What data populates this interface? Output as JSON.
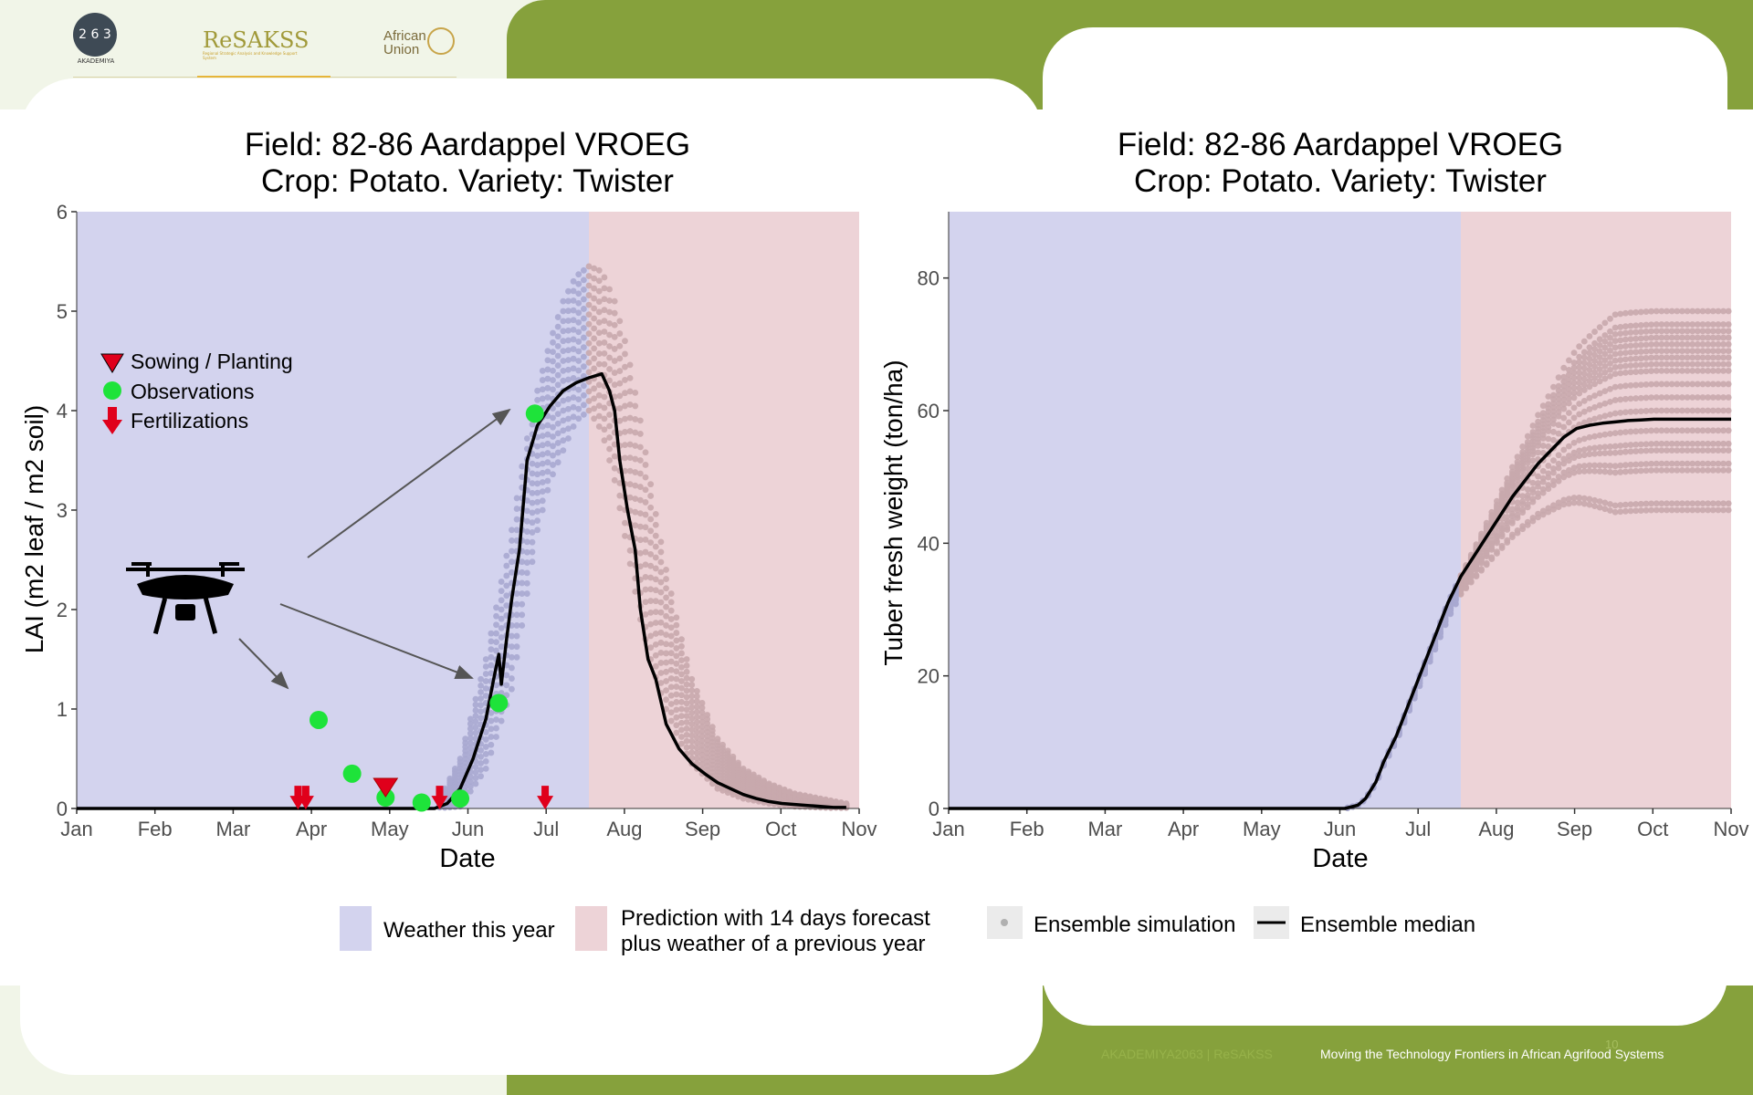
{
  "logos": {
    "akademiya_top": "6 3",
    "akademiya_bottom": "2",
    "akademiya_caption": "AKADEMIYA",
    "resakss": "ReSAKSS",
    "resakss_tagline": "Regional Strategic Analysis and Knowledge Support System",
    "african_union_line1": "African",
    "african_union_line2": "Union"
  },
  "footer": {
    "text": "Moving the Technology Frontiers in African Agrifood Systems",
    "faint_text": "AKADEMIYA2063 | ReSAKSS",
    "page_number": "10"
  },
  "legend": {
    "weather_this_year": "Weather this year",
    "prediction_line1": "Prediction with 14 days forecast",
    "prediction_line2": "plus weather of a previous year",
    "ensemble_simulation": "Ensemble simulation",
    "ensemble_median": "Ensemble median",
    "colors": {
      "weather": "#d3d3ee",
      "prediction": "#edd3d7",
      "points_weather": "#a8a8d0",
      "points_prediction": "#c8a9ad",
      "median": "#000000"
    }
  },
  "chart_data": [
    {
      "type": "line",
      "title_line1": "Field: 82-86 Aardappel VROEG",
      "title_line2": "Crop: Potato. Variety: Twister",
      "xlabel": "Date",
      "ylabel": "LAI (m2 leaf / m2 soil)",
      "x_ticks": [
        "Jan",
        "Feb",
        "Mar",
        "Apr",
        "May",
        "Jun",
        "Jul",
        "Aug",
        "Sep",
        "Oct",
        "Nov"
      ],
      "y_ticks": [
        "0",
        "1",
        "2",
        "3",
        "4",
        "5",
        "6"
      ],
      "ylim": [
        0,
        6
      ],
      "x_unit": "day of year",
      "xlim": [
        1,
        305
      ],
      "shaded_regions": [
        {
          "label": "Weather this year",
          "from": 1,
          "to": 200
        },
        {
          "label": "Prediction with 14 days forecast plus weather of a previous year",
          "from": 200,
          "to": 305
        }
      ],
      "inner_legend": [
        {
          "symbol": "triangle-down",
          "label": "Sowing / Planting"
        },
        {
          "symbol": "circle",
          "label": "Observations"
        },
        {
          "symbol": "arrow-down",
          "label": "Fertilizations"
        }
      ],
      "ensemble_median": {
        "x": [
          1,
          140,
          145,
          150,
          155,
          160,
          163,
          165,
          166,
          168,
          170,
          173,
          176,
          180,
          185,
          190,
          195,
          200,
          205,
          208,
          210,
          212,
          215,
          218,
          220,
          223,
          226,
          230,
          235,
          240,
          245,
          250,
          255,
          260,
          265,
          270,
          275,
          280,
          285,
          290,
          295,
          300
        ],
        "y": [
          0,
          0,
          0.05,
          0.2,
          0.5,
          0.9,
          1.3,
          1.55,
          1.25,
          1.7,
          2.1,
          2.6,
          3.5,
          3.85,
          4.05,
          4.2,
          4.28,
          4.33,
          4.37,
          4.2,
          4.0,
          3.5,
          3.0,
          2.6,
          2.0,
          1.5,
          1.3,
          0.85,
          0.6,
          0.45,
          0.35,
          0.26,
          0.2,
          0.14,
          0.1,
          0.07,
          0.05,
          0.04,
          0.03,
          0.02,
          0.01,
          0.01
        ]
      },
      "ensemble_envelope": {
        "x": [
          140,
          150,
          160,
          170,
          175,
          180,
          185,
          190,
          195,
          200,
          205,
          210,
          215,
          220,
          225,
          230,
          235,
          240,
          250,
          260,
          270,
          280,
          290,
          300
        ],
        "upper": [
          0,
          0.5,
          1.5,
          2.8,
          3.6,
          4.2,
          4.7,
          5.1,
          5.35,
          5.45,
          5.4,
          5.1,
          4.6,
          3.9,
          3.1,
          2.4,
          1.8,
          1.3,
          0.7,
          0.4,
          0.25,
          0.15,
          0.1,
          0.05
        ],
        "lower": [
          0,
          0.02,
          0.4,
          1.2,
          2.0,
          2.8,
          3.3,
          3.6,
          3.9,
          4.0,
          3.8,
          3.3,
          2.6,
          1.9,
          1.4,
          1.0,
          0.7,
          0.45,
          0.2,
          0.1,
          0.05,
          0.02,
          0.01,
          0
        ]
      },
      "observations": {
        "x": [
          95,
          108,
          121,
          135,
          150,
          165,
          179
        ],
        "y": [
          0.89,
          0.35,
          0.11,
          0.06,
          0.1,
          1.06,
          3.97
        ]
      },
      "sowing_planting": {
        "x": [
          121
        ],
        "y": [
          0.22
        ]
      },
      "fertilizations": {
        "x": [
          87,
          90,
          142,
          183
        ],
        "y": [
          0.1,
          0.1,
          0.1,
          0.1
        ]
      }
    },
    {
      "type": "line",
      "title_line1": "Field: 82-86 Aardappel VROEG",
      "title_line2": "Crop: Potato. Variety: Twister",
      "xlabel": "Date",
      "ylabel": "Tuber fresh weight (ton/ha)",
      "x_ticks": [
        "Jan",
        "Feb",
        "Mar",
        "Apr",
        "May",
        "Jun",
        "Jul",
        "Aug",
        "Sep",
        "Oct",
        "Nov"
      ],
      "y_ticks": [
        "0",
        "20",
        "40",
        "60",
        "80"
      ],
      "ylim": [
        0,
        90
      ],
      "x_unit": "day of year",
      "xlim": [
        1,
        305
      ],
      "shaded_regions": [
        {
          "label": "Weather this year",
          "from": 1,
          "to": 200
        },
        {
          "label": "Prediction with 14 days forecast plus weather of a previous year",
          "from": 200,
          "to": 305
        }
      ],
      "ensemble_median": {
        "x": [
          1,
          155,
          160,
          163,
          167,
          170,
          175,
          180,
          185,
          190,
          195,
          200,
          205,
          210,
          215,
          220,
          225,
          230,
          235,
          240,
          245,
          250,
          255,
          260,
          265,
          270,
          275,
          280,
          285,
          290,
          295,
          300,
          305
        ],
        "y": [
          0,
          0,
          0.5,
          1.5,
          4,
          7,
          11,
          16,
          21,
          26,
          31,
          35,
          38,
          41,
          44,
          47,
          49.5,
          52,
          54,
          56,
          57.3,
          57.8,
          58.1,
          58.3,
          58.5,
          58.6,
          58.7,
          58.7,
          58.7,
          58.7,
          58.7,
          58.7,
          58.7
        ]
      },
      "ensemble_final_values": [
        45,
        46,
        51,
        52,
        54,
        55,
        57,
        60,
        62,
        64,
        66,
        67,
        68,
        69,
        70,
        71,
        72,
        73,
        75
      ]
    }
  ]
}
